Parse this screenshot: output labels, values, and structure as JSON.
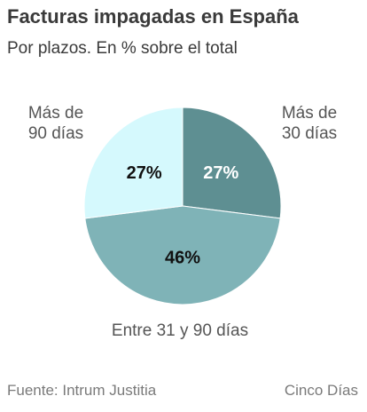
{
  "header": {
    "title": "Facturas impagadas en España",
    "subtitle": "Por plazos. En % sobre el total"
  },
  "chart_data": {
    "type": "pie",
    "title": "Facturas impagadas en España",
    "subtitle": "Por plazos. En % sobre el total",
    "slices": [
      {
        "label_lines": [
          "Más de",
          "30 días"
        ],
        "value": 27,
        "value_label": "27%",
        "color": "#5e8f92",
        "text_color": "#ffffff"
      },
      {
        "label_lines": [
          "Entre 31 y 90 días"
        ],
        "value": 46,
        "value_label": "46%",
        "color": "#7fb3b7",
        "text_color": "#111111"
      },
      {
        "label_lines": [
          "Más de",
          "90 días"
        ],
        "value": 27,
        "value_label": "27%",
        "color": "#d5f9fd",
        "text_color": "#111111"
      }
    ]
  },
  "footer": {
    "source": "Fuente: Intrum Justitia",
    "brand": "Cinco Días"
  }
}
